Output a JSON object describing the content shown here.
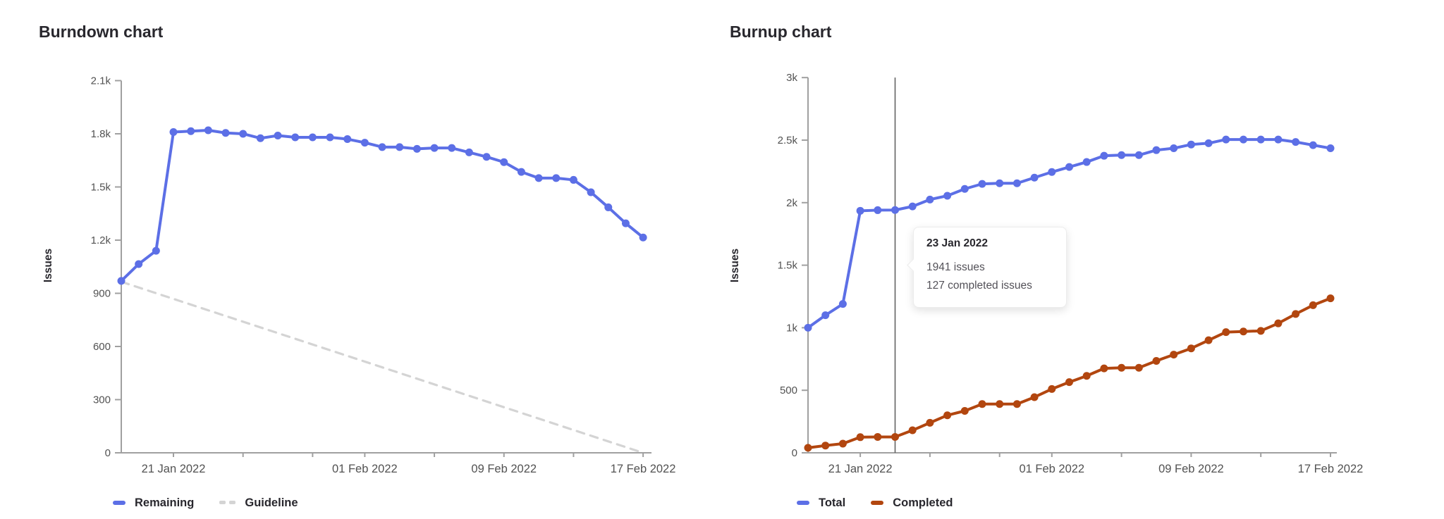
{
  "page": {
    "background_color": "#ffffff"
  },
  "tooltip": {
    "date": "23 Jan 2022",
    "total_line": "1941 issues",
    "completed_line": "127 completed issues"
  },
  "colors": {
    "line_blue": "#5c6fe6",
    "line_orange": "#b2460f",
    "guideline_gray": "#d4d4d4",
    "axis_gray": "#a0a0a0",
    "tick_text_gray": "#525252",
    "crosshair_gray": "#636363",
    "title_text": "#28272d"
  },
  "chart_data": [
    {
      "type": "line",
      "title": "Burndown chart",
      "ylabel": "Issues",
      "xlabel": "",
      "grid": false,
      "legend_position": "bottom-left",
      "ylim": [
        0,
        2100
      ],
      "y_ticks": [
        {
          "value": 0,
          "label": "0"
        },
        {
          "value": 300,
          "label": "300"
        },
        {
          "value": 600,
          "label": "600"
        },
        {
          "value": 900,
          "label": "900"
        },
        {
          "value": 1200,
          "label": "1.2k"
        },
        {
          "value": 1500,
          "label": "1.5k"
        },
        {
          "value": 1800,
          "label": "1.8k"
        },
        {
          "value": 2100,
          "label": "2.1k"
        }
      ],
      "x": [
        "18 Jan 2022",
        "19 Jan 2022",
        "20 Jan 2022",
        "21 Jan 2022",
        "22 Jan 2022",
        "23 Jan 2022",
        "24 Jan 2022",
        "25 Jan 2022",
        "26 Jan 2022",
        "27 Jan 2022",
        "28 Jan 2022",
        "29 Jan 2022",
        "30 Jan 2022",
        "31 Jan 2022",
        "01 Feb 2022",
        "02 Feb 2022",
        "03 Feb 2022",
        "04 Feb 2022",
        "05 Feb 2022",
        "06 Feb 2022",
        "07 Feb 2022",
        "08 Feb 2022",
        "09 Feb 2022",
        "10 Feb 2022",
        "11 Feb 2022",
        "12 Feb 2022",
        "13 Feb 2022",
        "14 Feb 2022",
        "15 Feb 2022",
        "16 Feb 2022",
        "17 Feb 2022"
      ],
      "x_labeled_ticks": [
        {
          "index": 3,
          "label": "21 Jan 2022"
        },
        {
          "index": 14,
          "label": "01 Feb 2022"
        },
        {
          "index": 22,
          "label": "09 Feb 2022"
        },
        {
          "index": 30,
          "label": "17 Feb 2022"
        }
      ],
      "x_minor_tick_indices": [
        3,
        7,
        11,
        14,
        18,
        22,
        26,
        30
      ],
      "series": [
        {
          "name": "Guideline",
          "type": "straight_dashed_line",
          "color": "#d4d4d4",
          "start_value": 965,
          "end_value": 0
        },
        {
          "name": "Remaining",
          "type": "line_with_points",
          "color": "#5c6fe6",
          "values": [
            970,
            1065,
            1140,
            1810,
            1815,
            1820,
            1805,
            1800,
            1775,
            1790,
            1780,
            1780,
            1780,
            1770,
            1750,
            1725,
            1725,
            1715,
            1720,
            1720,
            1695,
            1670,
            1640,
            1585,
            1550,
            1550,
            1540,
            1470,
            1385,
            1295,
            1215
          ]
        }
      ]
    },
    {
      "type": "line",
      "title": "Burnup chart",
      "ylabel": "Issues",
      "xlabel": "",
      "grid": false,
      "legend_position": "bottom-left",
      "ylim": [
        0,
        3000
      ],
      "y_ticks": [
        {
          "value": 0,
          "label": "0"
        },
        {
          "value": 500,
          "label": "500"
        },
        {
          "value": 1000,
          "label": "1k"
        },
        {
          "value": 1500,
          "label": "1.5k"
        },
        {
          "value": 2000,
          "label": "2k"
        },
        {
          "value": 2500,
          "label": "2.5k"
        },
        {
          "value": 3000,
          "label": "3k"
        }
      ],
      "x": [
        "18 Jan 2022",
        "19 Jan 2022",
        "20 Jan 2022",
        "21 Jan 2022",
        "22 Jan 2022",
        "23 Jan 2022",
        "24 Jan 2022",
        "25 Jan 2022",
        "26 Jan 2022",
        "27 Jan 2022",
        "28 Jan 2022",
        "29 Jan 2022",
        "30 Jan 2022",
        "31 Jan 2022",
        "01 Feb 2022",
        "02 Feb 2022",
        "03 Feb 2022",
        "04 Feb 2022",
        "05 Feb 2022",
        "06 Feb 2022",
        "07 Feb 2022",
        "08 Feb 2022",
        "09 Feb 2022",
        "10 Feb 2022",
        "11 Feb 2022",
        "12 Feb 2022",
        "13 Feb 2022",
        "14 Feb 2022",
        "15 Feb 2022",
        "16 Feb 2022",
        "17 Feb 2022"
      ],
      "x_labeled_ticks": [
        {
          "index": 3,
          "label": "21 Jan 2022"
        },
        {
          "index": 14,
          "label": "01 Feb 2022"
        },
        {
          "index": 22,
          "label": "09 Feb 2022"
        },
        {
          "index": 30,
          "label": "17 Feb 2022"
        }
      ],
      "x_minor_tick_indices": [
        3,
        7,
        11,
        14,
        18,
        22,
        26,
        30
      ],
      "crosshair": {
        "index": 5,
        "date": "23 Jan 2022",
        "total": 1941,
        "completed": 127
      },
      "series": [
        {
          "name": "Total",
          "type": "line_with_points",
          "color": "#5c6fe6",
          "values": [
            1000,
            1100,
            1190,
            1935,
            1940,
            1941,
            1970,
            2025,
            2055,
            2110,
            2150,
            2155,
            2155,
            2200,
            2245,
            2285,
            2325,
            2375,
            2380,
            2380,
            2420,
            2435,
            2465,
            2475,
            2505,
            2505,
            2505,
            2505,
            2485,
            2460,
            2435
          ]
        },
        {
          "name": "Completed",
          "type": "line_with_points",
          "color": "#b2460f",
          "values": [
            40,
            58,
            73,
            125,
            127,
            127,
            180,
            240,
            300,
            335,
            390,
            390,
            390,
            445,
            510,
            565,
            615,
            675,
            680,
            680,
            735,
            785,
            835,
            900,
            965,
            970,
            975,
            1035,
            1110,
            1180,
            1235
          ]
        }
      ]
    }
  ]
}
